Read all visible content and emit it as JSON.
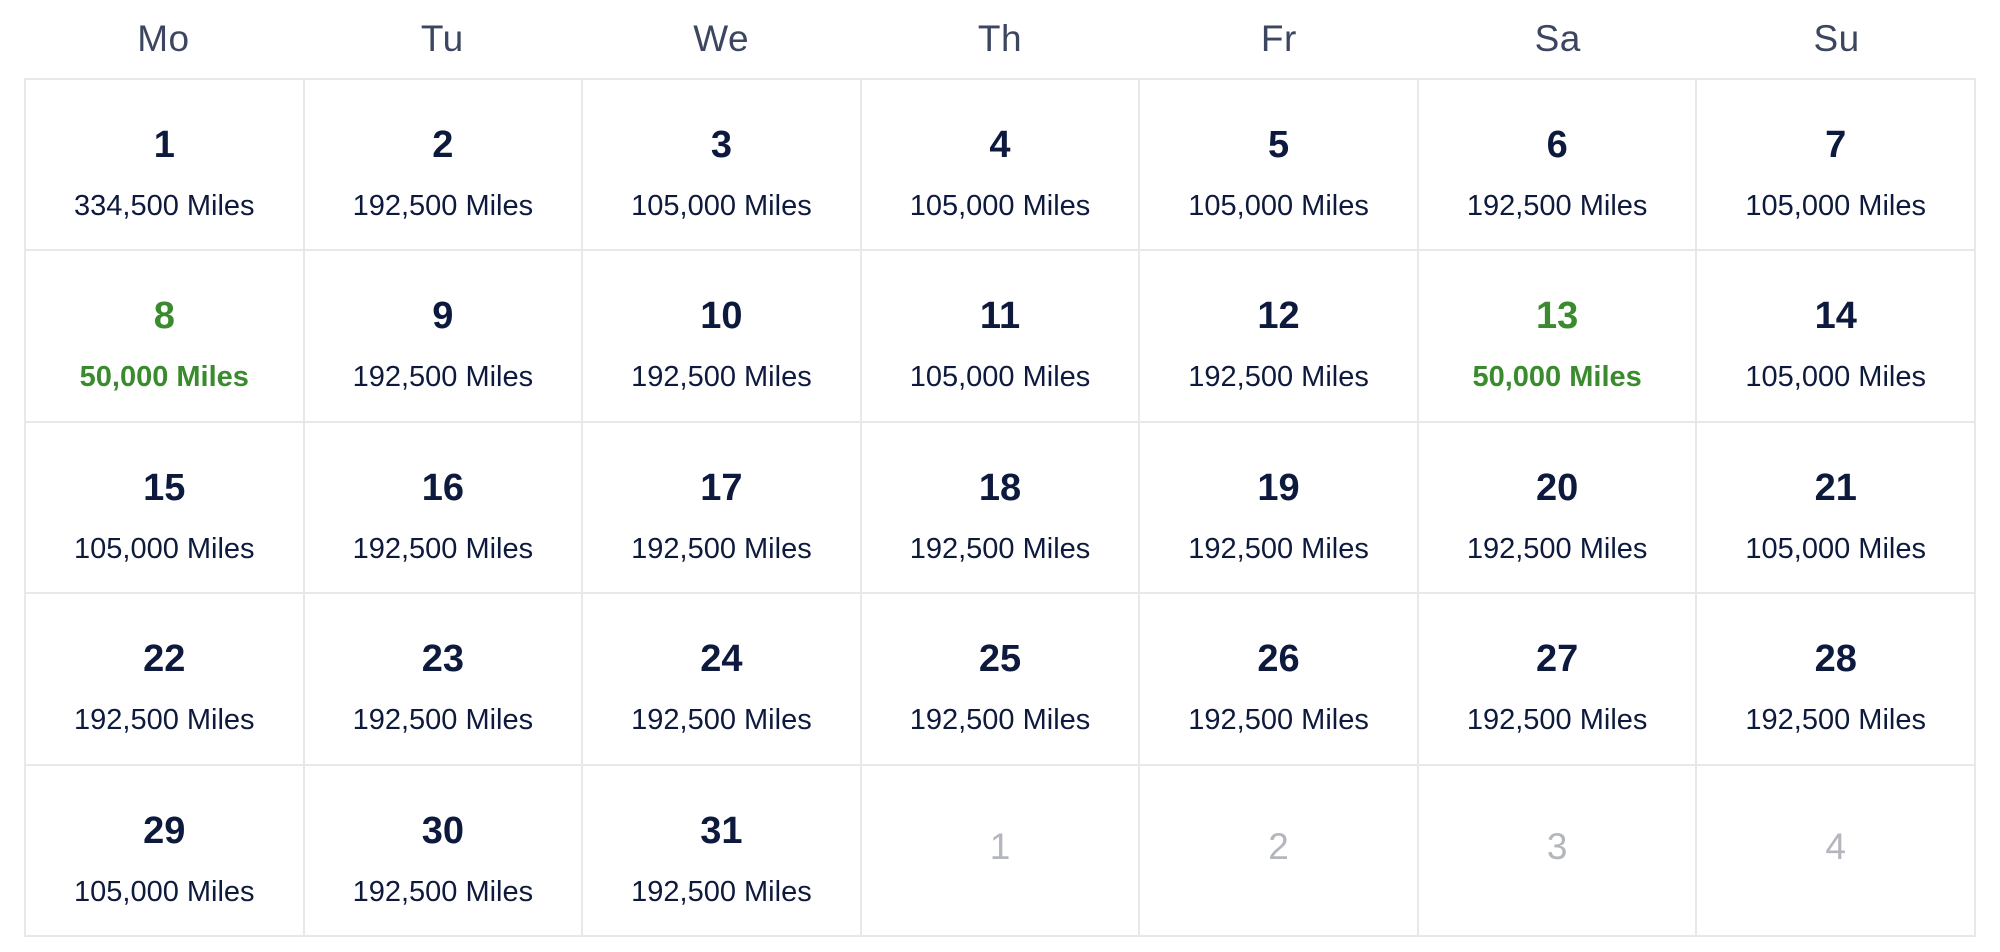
{
  "weekdays": [
    "Mo",
    "Tu",
    "We",
    "Th",
    "Fr",
    "Sa",
    "Su"
  ],
  "colors": {
    "text": "#0e1a3d",
    "lowest_fare": "#3a8a2e",
    "outside_month": "#b3b6bd",
    "grid_line": "#e6e8ec"
  },
  "days": [
    {
      "day": "1",
      "miles": "334,500 Miles",
      "status": "normal"
    },
    {
      "day": "2",
      "miles": "192,500 Miles",
      "status": "normal"
    },
    {
      "day": "3",
      "miles": "105,000 Miles",
      "status": "normal"
    },
    {
      "day": "4",
      "miles": "105,000 Miles",
      "status": "normal"
    },
    {
      "day": "5",
      "miles": "105,000 Miles",
      "status": "normal"
    },
    {
      "day": "6",
      "miles": "192,500 Miles",
      "status": "normal"
    },
    {
      "day": "7",
      "miles": "105,000 Miles",
      "status": "normal"
    },
    {
      "day": "8",
      "miles": "50,000 Miles",
      "status": "cheap"
    },
    {
      "day": "9",
      "miles": "192,500 Miles",
      "status": "normal"
    },
    {
      "day": "10",
      "miles": "192,500 Miles",
      "status": "normal"
    },
    {
      "day": "11",
      "miles": "105,000 Miles",
      "status": "normal"
    },
    {
      "day": "12",
      "miles": "192,500 Miles",
      "status": "normal"
    },
    {
      "day": "13",
      "miles": "50,000 Miles",
      "status": "cheap"
    },
    {
      "day": "14",
      "miles": "105,000 Miles",
      "status": "normal"
    },
    {
      "day": "15",
      "miles": "105,000 Miles",
      "status": "normal"
    },
    {
      "day": "16",
      "miles": "192,500 Miles",
      "status": "normal"
    },
    {
      "day": "17",
      "miles": "192,500 Miles",
      "status": "normal"
    },
    {
      "day": "18",
      "miles": "192,500 Miles",
      "status": "normal"
    },
    {
      "day": "19",
      "miles": "192,500 Miles",
      "status": "normal"
    },
    {
      "day": "20",
      "miles": "192,500 Miles",
      "status": "normal"
    },
    {
      "day": "21",
      "miles": "105,000 Miles",
      "status": "normal"
    },
    {
      "day": "22",
      "miles": "192,500 Miles",
      "status": "normal"
    },
    {
      "day": "23",
      "miles": "192,500 Miles",
      "status": "normal"
    },
    {
      "day": "24",
      "miles": "192,500 Miles",
      "status": "normal"
    },
    {
      "day": "25",
      "miles": "192,500 Miles",
      "status": "normal"
    },
    {
      "day": "26",
      "miles": "192,500 Miles",
      "status": "normal"
    },
    {
      "day": "27",
      "miles": "192,500 Miles",
      "status": "normal"
    },
    {
      "day": "28",
      "miles": "192,500 Miles",
      "status": "normal"
    },
    {
      "day": "29",
      "miles": "105,000 Miles",
      "status": "normal"
    },
    {
      "day": "30",
      "miles": "192,500 Miles",
      "status": "normal"
    },
    {
      "day": "31",
      "miles": "192,500 Miles",
      "status": "normal"
    },
    {
      "day": "1",
      "miles": null,
      "status": "outside"
    },
    {
      "day": "2",
      "miles": null,
      "status": "outside"
    },
    {
      "day": "3",
      "miles": null,
      "status": "outside"
    },
    {
      "day": "4",
      "miles": null,
      "status": "outside"
    }
  ]
}
